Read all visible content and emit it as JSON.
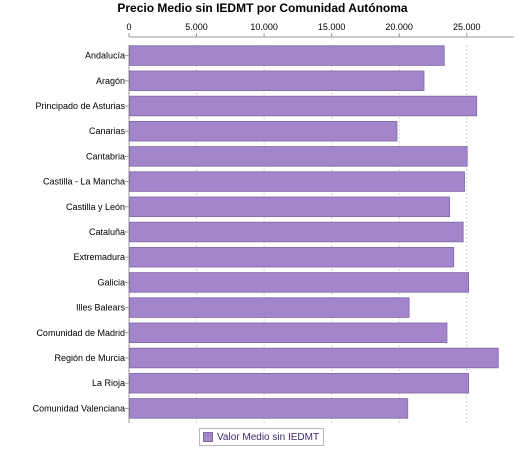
{
  "chart_data": {
    "type": "bar",
    "orientation": "horizontal",
    "title": "Precio Medio sin IEDMT por Comunidad Autónoma",
    "categories": [
      "Andalucía",
      "Aragón",
      "Principado de Asturias",
      "Canarias",
      "Cantabria",
      "Castilla - La Mancha",
      "Castilla y León",
      "Cataluña",
      "Extremadura",
      "Galicia",
      "Illes Balears",
      "Comunidad de Madrid",
      "Región de Murcia",
      "La Rioja",
      "Comunidad Valenciana"
    ],
    "series": [
      {
        "name": "Valor Medio sin IEDMT",
        "values": [
          23300,
          21800,
          25700,
          19800,
          25000,
          24800,
          23700,
          24700,
          24000,
          25100,
          20700,
          23500,
          27300,
          25100,
          20600
        ],
        "color": "#a385cb"
      }
    ],
    "x_ticks": [
      "0",
      "5.000",
      "10.000",
      "15.000",
      "20.000",
      "25.000"
    ],
    "x_tick_values": [
      0,
      5000,
      10000,
      15000,
      20000,
      25000
    ],
    "xlim": [
      0,
      28500
    ],
    "grid": true,
    "legend_position": "bottom"
  }
}
